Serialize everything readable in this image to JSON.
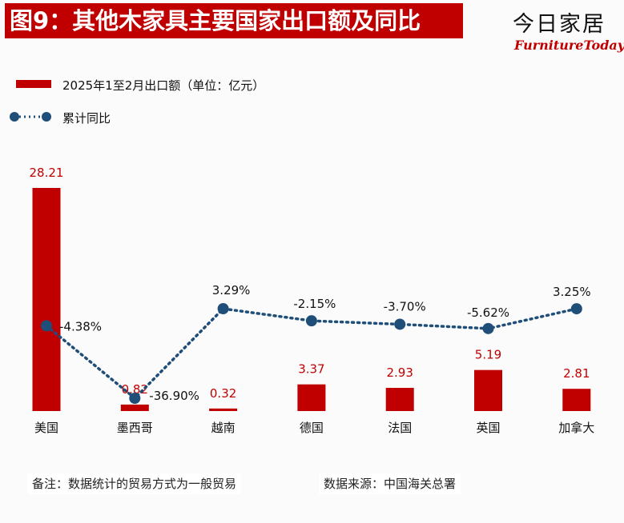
{
  "header": {
    "title": "图9：其他木家具主要国家出口额及同比",
    "brand_cn": "今日家居",
    "brand_en": "FurnitureToday"
  },
  "legend": {
    "bar_label": "2025年1至2月出口额（单位：亿元）",
    "line_label": "累计同比"
  },
  "colors": {
    "bar": "#c00000",
    "line": "#1f4e79"
  },
  "chart_data": {
    "type": "bar",
    "categories": [
      "美国",
      "墨西哥",
      "越南",
      "德国",
      "法国",
      "英国",
      "加拿大"
    ],
    "series": [
      {
        "name": "2025年1至2月出口额（单位：亿元）",
        "type": "bar",
        "values": [
          28.21,
          0.82,
          0.32,
          3.37,
          2.93,
          5.19,
          2.81
        ],
        "labels": [
          "28.21",
          "0.82",
          "0.32",
          "3.37",
          "2.93",
          "5.19",
          "2.81"
        ]
      },
      {
        "name": "累计同比",
        "type": "line",
        "values": [
          -4.38,
          -36.9,
          3.29,
          -2.15,
          -3.7,
          -5.62,
          3.25
        ],
        "labels": [
          "-4.38%",
          "-36.90%",
          "3.29%",
          "-2.15%",
          "-3.70%",
          "-5.62%",
          "3.25%"
        ]
      }
    ],
    "bar_ylim": [
      0,
      28.21
    ],
    "line_ylim": [
      -36.9,
      3.29
    ],
    "grid": false,
    "legend_position": "top-left"
  },
  "footer": {
    "note": "备注：数据统计的贸易方式为一般贸易",
    "source": "数据来源：中国海关总署"
  }
}
